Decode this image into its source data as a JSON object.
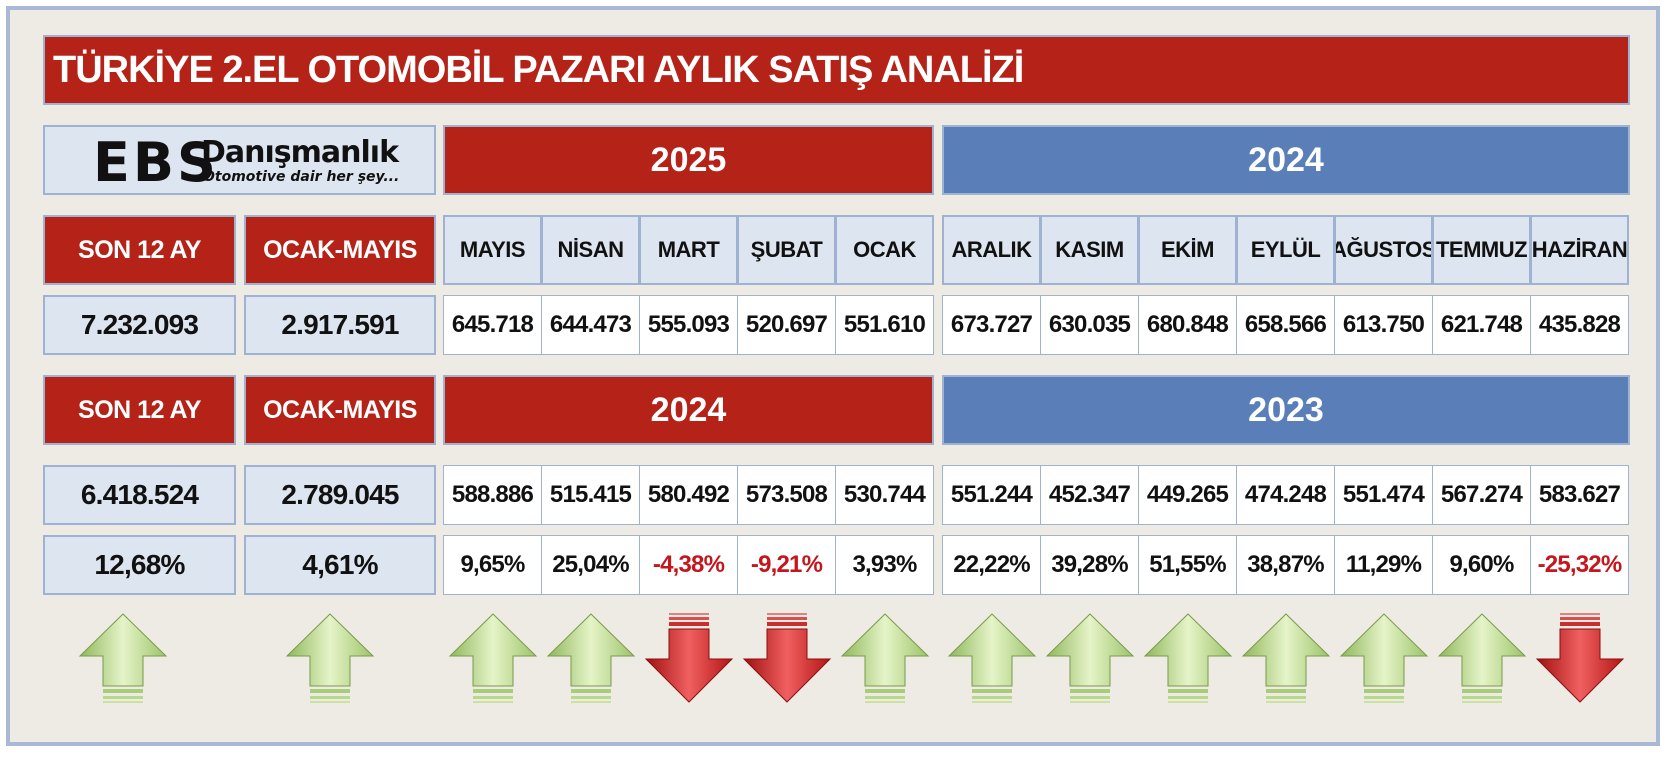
{
  "title": "TÜRKİYE 2.EL OTOMOBİL PAZARI AYLIK SATIŞ ANALİZİ",
  "logo": {
    "brand": "EBS",
    "name": "Danışmanlık",
    "tagline": "Otomotive dair her şey..."
  },
  "top": {
    "year_left": "2025",
    "year_right": "2024",
    "labels": {
      "last12": "SON 12 AY",
      "janmay": "OCAK-MAYIS"
    },
    "totals": {
      "last12": "7.232.093",
      "janmay": "2.917.591"
    },
    "months": [
      "MAYIS",
      "NİSAN",
      "MART",
      "ŞUBAT",
      "OCAK",
      "ARALIK",
      "KASIM",
      "EKİM",
      "EYLÜL",
      "AĞUSTOS",
      "TEMMUZ",
      "HAZİRAN"
    ],
    "values": [
      "645.718",
      "644.473",
      "555.093",
      "520.697",
      "551.610",
      "673.727",
      "630.035",
      "680.848",
      "658.566",
      "613.750",
      "621.748",
      "435.828"
    ]
  },
  "bottom": {
    "year_left": "2024",
    "year_right": "2023",
    "labels": {
      "last12": "SON 12 AY",
      "janmay": "OCAK-MAYIS"
    },
    "totals": {
      "last12": "6.418.524",
      "janmay": "2.789.045"
    },
    "values": [
      "588.886",
      "515.415",
      "580.492",
      "573.508",
      "530.744",
      "551.244",
      "452.347",
      "449.265",
      "474.248",
      "551.474",
      "567.274",
      "583.627"
    ]
  },
  "change": {
    "totals": {
      "last12": "12,68%",
      "janmay": "4,61%"
    },
    "values": [
      "9,65%",
      "25,04%",
      "-4,38%",
      "-9,21%",
      "3,93%",
      "22,22%",
      "39,28%",
      "51,55%",
      "38,87%",
      "11,29%",
      "9,60%",
      "-25,32%"
    ]
  },
  "trend": {
    "totals": {
      "last12": "up",
      "janmay": "up"
    },
    "values": [
      "up",
      "up",
      "down",
      "down",
      "up",
      "up",
      "up",
      "up",
      "up",
      "up",
      "up",
      "down"
    ]
  },
  "colors": {
    "red": "#b42218",
    "blue": "#5a7fb8",
    "light": "#dde5f0",
    "up": "#b9d98a",
    "down": "#d62020"
  }
}
